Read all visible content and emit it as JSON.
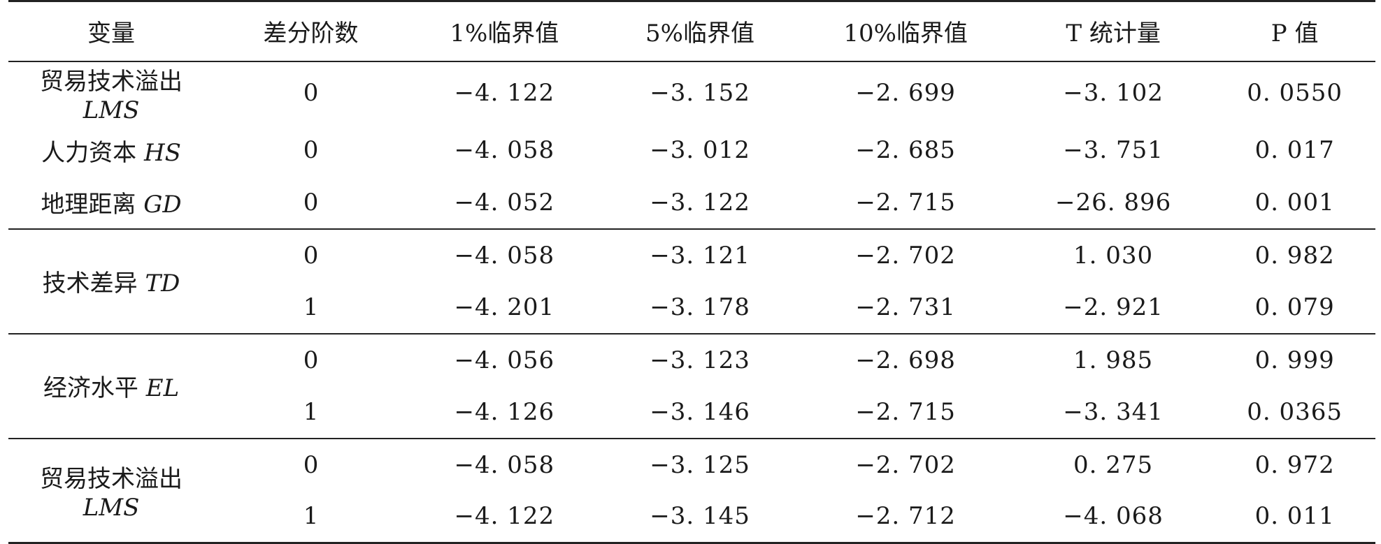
{
  "headers": [
    "变量",
    "差分阶数",
    "1%临界值",
    "5%临界值",
    "10%临界值",
    "T 统计量",
    "P 值"
  ],
  "groups": [
    {
      "rows": [
        {
          "var_name": "贸易技术溢出",
          "var_abbr": "LMS",
          "order": "0",
          "c1": "−4. 122",
          "c5": "−3. 152",
          "c10": "−2. 699",
          "t": "−3. 102",
          "p": "0. 0550"
        },
        {
          "var_name": "人力资本",
          "var_abbr": "HS",
          "order": "0",
          "c1": "−4. 058",
          "c5": "−3. 012",
          "c10": "−2. 685",
          "t": "−3. 751",
          "p": "0. 017"
        },
        {
          "var_name": "地理距离",
          "var_abbr": "GD",
          "order": "0",
          "c1": "−4. 052",
          "c5": "−3. 122",
          "c10": "−2. 715",
          "t": "−26. 896",
          "p": "0. 001"
        }
      ]
    },
    {
      "var_name": "技术差异",
      "var_abbr": "TD",
      "rows": [
        {
          "order": "0",
          "c1": "−4. 058",
          "c5": "−3. 121",
          "c10": "−2. 702",
          "t": "1. 030",
          "p": "0. 982"
        },
        {
          "order": "1",
          "c1": "−4. 201",
          "c5": "−3. 178",
          "c10": "−2. 731",
          "t": "−2. 921",
          "p": "0. 079"
        }
      ]
    },
    {
      "var_name": "经济水平",
      "var_abbr": "EL",
      "rows": [
        {
          "order": "0",
          "c1": "−4. 056",
          "c5": "−3. 123",
          "c10": "−2. 698",
          "t": "1. 985",
          "p": "0. 999"
        },
        {
          "order": "1",
          "c1": "−4. 126",
          "c5": "−3. 146",
          "c10": "−2. 715",
          "t": "−3. 341",
          "p": "0. 0365"
        }
      ]
    },
    {
      "var_name": "贸易技术溢出",
      "var_abbr": "LMS",
      "rows": [
        {
          "order": "0",
          "c1": "−4. 058",
          "c5": "−3. 125",
          "c10": "−2. 702",
          "t": "0. 275",
          "p": "0. 972"
        },
        {
          "order": "1",
          "c1": "−4. 122",
          "c5": "−3. 145",
          "c10": "−2. 712",
          "t": "−4. 068",
          "p": "0. 011"
        }
      ]
    }
  ]
}
